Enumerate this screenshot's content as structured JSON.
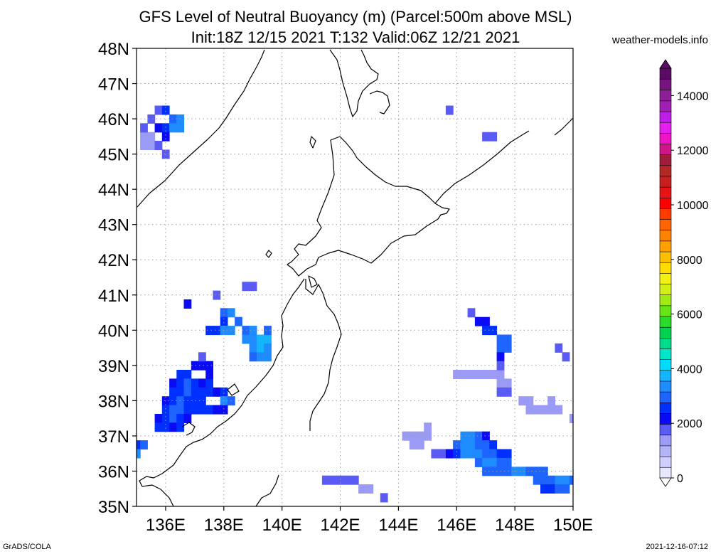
{
  "chart_data": {
    "type": "heatmap",
    "title": "GFS Level of Neutral Buoyancy (m) (Parcel:500m above MSL)",
    "subtitle": "Init:18Z 12/15 2021 T:132 Valid:06Z 12/21 2021",
    "source": "weather-models.info",
    "footer_left": "GrADS/COLA",
    "footer_right": "2021-12-16-07:12",
    "xlim": [
      135,
      150
    ],
    "ylim": [
      35,
      48
    ],
    "grid": true,
    "x_ticks": [
      {
        "value": 136,
        "label": "136E"
      },
      {
        "value": 138,
        "label": "138E"
      },
      {
        "value": 140,
        "label": "140E"
      },
      {
        "value": 142,
        "label": "142E"
      },
      {
        "value": 144,
        "label": "144E"
      },
      {
        "value": 146,
        "label": "146E"
      },
      {
        "value": 148,
        "label": "148E"
      },
      {
        "value": 150,
        "label": "150E"
      }
    ],
    "y_ticks": [
      {
        "value": 35,
        "label": "35N"
      },
      {
        "value": 36,
        "label": "36N"
      },
      {
        "value": 37,
        "label": "37N"
      },
      {
        "value": 38,
        "label": "38N"
      },
      {
        "value": 39,
        "label": "39N"
      },
      {
        "value": 40,
        "label": "40N"
      },
      {
        "value": 41,
        "label": "41N"
      },
      {
        "value": 42,
        "label": "42N"
      },
      {
        "value": 43,
        "label": "43N"
      },
      {
        "value": 44,
        "label": "44N"
      },
      {
        "value": 45,
        "label": "45N"
      },
      {
        "value": 46,
        "label": "46N"
      },
      {
        "value": 47,
        "label": "47N"
      },
      {
        "value": 48,
        "label": "48N"
      }
    ],
    "colorbar": {
      "min": 0,
      "max": 15000,
      "labels": [
        {
          "value": 0,
          "label": "0"
        },
        {
          "value": 2000,
          "label": "2000"
        },
        {
          "value": 4000,
          "label": "4000"
        },
        {
          "value": 6000,
          "label": "6000"
        },
        {
          "value": 8000,
          "label": "8000"
        },
        {
          "value": 10000,
          "label": "10000"
        },
        {
          "value": 12000,
          "label": "12000"
        },
        {
          "value": 14000,
          "label": "14000"
        }
      ],
      "colors": [
        "#e6e6ff",
        "#cdcdff",
        "#b4b4fa",
        "#9b9bf5",
        "#5a5af5",
        "#0a0af5",
        "#0030ff",
        "#1e64ff",
        "#1e8cff",
        "#14b4ff",
        "#00dcff",
        "#00e6c8",
        "#00dc8c",
        "#00d250",
        "#28dc28",
        "#64e614",
        "#a0eb14",
        "#d2f014",
        "#f5f014",
        "#ffdc00",
        "#ffbe00",
        "#ffa000",
        "#ff8200",
        "#ff6400",
        "#ff3c00",
        "#ff0000",
        "#e61414",
        "#c81e1e",
        "#b42828",
        "#a01e3c",
        "#d2148c",
        "#f014c8",
        "#e61ef0",
        "#be1ee6",
        "#a01eb4",
        "#8c1e96",
        "#78147d",
        "#5a0a64"
      ]
    },
    "cells": [
      {
        "lon": 135.5,
        "lat": 45.5,
        "value": 1500
      },
      {
        "lon": 135.5,
        "lat": 45.25,
        "value": 1300
      },
      {
        "lon": 135.75,
        "lat": 45.25,
        "value": 1800
      },
      {
        "lon": 135.75,
        "lat": 45.75,
        "value": 2200
      },
      {
        "lon": 135.5,
        "lat": 46.0,
        "value": 1700
      },
      {
        "lon": 135.75,
        "lat": 46.25,
        "value": 1900
      },
      {
        "lon": 136.0,
        "lat": 46.25,
        "value": 2600
      },
      {
        "lon": 136.25,
        "lat": 46.0,
        "value": 3000
      },
      {
        "lon": 136.0,
        "lat": 45.75,
        "value": 2400
      },
      {
        "lon": 136.25,
        "lat": 45.75,
        "value": 3200
      },
      {
        "lon": 136.5,
        "lat": 46.0,
        "value": 3300
      },
      {
        "lon": 136.5,
        "lat": 45.75,
        "value": 3300
      },
      {
        "lon": 135.25,
        "lat": 45.25,
        "value": 1200
      },
      {
        "lon": 135.25,
        "lat": 45.5,
        "value": 1400
      },
      {
        "lon": 135.25,
        "lat": 45.75,
        "value": 1600
      },
      {
        "lon": 136.0,
        "lat": 45.5,
        "value": 2000
      },
      {
        "lon": 136.0,
        "lat": 45.0,
        "value": 1600
      },
      {
        "lon": 145.75,
        "lat": 46.25,
        "value": 1600
      },
      {
        "lon": 147.0,
        "lat": 45.5,
        "value": 1900
      },
      {
        "lon": 147.25,
        "lat": 45.5,
        "value": 1900
      },
      {
        "lon": 136.75,
        "lat": 40.75,
        "value": 2000
      },
      {
        "lon": 138.75,
        "lat": 41.25,
        "value": 1800
      },
      {
        "lon": 139.0,
        "lat": 41.25,
        "value": 1800
      },
      {
        "lon": 137.75,
        "lat": 41.0,
        "value": 1800
      },
      {
        "lon": 138.0,
        "lat": 40.5,
        "value": 2800
      },
      {
        "lon": 138.25,
        "lat": 40.5,
        "value": 3200
      },
      {
        "lon": 138.0,
        "lat": 40.25,
        "value": 2600
      },
      {
        "lon": 137.75,
        "lat": 40.0,
        "value": 2600
      },
      {
        "lon": 138.0,
        "lat": 40.0,
        "value": 3200
      },
      {
        "lon": 138.25,
        "lat": 40.0,
        "value": 3200
      },
      {
        "lon": 138.5,
        "lat": 40.25,
        "value": 3000
      },
      {
        "lon": 138.75,
        "lat": 40.0,
        "value": 3000
      },
      {
        "lon": 138.75,
        "lat": 39.75,
        "value": 3300
      },
      {
        "lon": 139.0,
        "lat": 40.0,
        "value": 3200
      },
      {
        "lon": 139.0,
        "lat": 39.75,
        "value": 3500
      },
      {
        "lon": 139.25,
        "lat": 39.75,
        "value": 3600
      },
      {
        "lon": 139.0,
        "lat": 39.5,
        "value": 3300
      },
      {
        "lon": 139.25,
        "lat": 39.5,
        "value": 3600
      },
      {
        "lon": 139.5,
        "lat": 39.75,
        "value": 3600
      },
      {
        "lon": 139.5,
        "lat": 39.5,
        "value": 3400
      },
      {
        "lon": 139.0,
        "lat": 39.25,
        "value": 3100
      },
      {
        "lon": 139.25,
        "lat": 39.25,
        "value": 3500
      },
      {
        "lon": 139.5,
        "lat": 39.25,
        "value": 3500
      },
      {
        "lon": 139.5,
        "lat": 40.0,
        "value": 3000
      },
      {
        "lon": 137.5,
        "lat": 40.0,
        "value": 2400
      },
      {
        "lon": 136.5,
        "lat": 38.75,
        "value": 2400
      },
      {
        "lon": 136.75,
        "lat": 38.75,
        "value": 2600
      },
      {
        "lon": 137.0,
        "lat": 39.0,
        "value": 2000
      },
      {
        "lon": 137.25,
        "lat": 39.0,
        "value": 2200
      },
      {
        "lon": 137.5,
        "lat": 39.0,
        "value": 2000
      },
      {
        "lon": 137.25,
        "lat": 39.25,
        "value": 1800
      },
      {
        "lon": 136.25,
        "lat": 38.5,
        "value": 2200
      },
      {
        "lon": 136.5,
        "lat": 38.5,
        "value": 2600
      },
      {
        "lon": 136.75,
        "lat": 38.5,
        "value": 2800
      },
      {
        "lon": 137.0,
        "lat": 38.5,
        "value": 2400
      },
      {
        "lon": 137.25,
        "lat": 38.5,
        "value": 2300
      },
      {
        "lon": 137.5,
        "lat": 38.5,
        "value": 2400
      },
      {
        "lon": 137.5,
        "lat": 38.75,
        "value": 2200
      },
      {
        "lon": 136.25,
        "lat": 38.25,
        "value": 2400
      },
      {
        "lon": 136.5,
        "lat": 38.25,
        "value": 2600
      },
      {
        "lon": 136.75,
        "lat": 38.25,
        "value": 2800
      },
      {
        "lon": 137.0,
        "lat": 38.25,
        "value": 2600
      },
      {
        "lon": 137.25,
        "lat": 38.25,
        "value": 2500
      },
      {
        "lon": 137.5,
        "lat": 38.25,
        "value": 2500
      },
      {
        "lon": 137.75,
        "lat": 38.25,
        "value": 2200
      },
      {
        "lon": 138.0,
        "lat": 38.25,
        "value": 2500
      },
      {
        "lon": 136.0,
        "lat": 38.0,
        "value": 2200
      },
      {
        "lon": 136.25,
        "lat": 38.0,
        "value": 2600
      },
      {
        "lon": 136.5,
        "lat": 38.0,
        "value": 2800
      },
      {
        "lon": 136.75,
        "lat": 38.0,
        "value": 2600
      },
      {
        "lon": 137.0,
        "lat": 38.0,
        "value": 2700
      },
      {
        "lon": 137.25,
        "lat": 38.0,
        "value": 2700
      },
      {
        "lon": 138.0,
        "lat": 38.0,
        "value": 3300
      },
      {
        "lon": 138.25,
        "lat": 38.0,
        "value": 3000
      },
      {
        "lon": 136.0,
        "lat": 37.75,
        "value": 2500
      },
      {
        "lon": 136.25,
        "lat": 37.75,
        "value": 2800
      },
      {
        "lon": 136.5,
        "lat": 37.75,
        "value": 2800
      },
      {
        "lon": 136.75,
        "lat": 37.75,
        "value": 2700
      },
      {
        "lon": 137.0,
        "lat": 37.75,
        "value": 2400
      },
      {
        "lon": 137.25,
        "lat": 37.75,
        "value": 2700
      },
      {
        "lon": 137.5,
        "lat": 37.75,
        "value": 2400
      },
      {
        "lon": 137.75,
        "lat": 37.75,
        "value": 2200
      },
      {
        "lon": 138.0,
        "lat": 37.75,
        "value": 2000
      },
      {
        "lon": 135.75,
        "lat": 37.5,
        "value": 2200
      },
      {
        "lon": 136.0,
        "lat": 37.5,
        "value": 2700
      },
      {
        "lon": 136.25,
        "lat": 37.5,
        "value": 2800
      },
      {
        "lon": 136.5,
        "lat": 37.5,
        "value": 2600
      },
      {
        "lon": 136.75,
        "lat": 37.5,
        "value": 2200
      },
      {
        "lon": 135.75,
        "lat": 37.25,
        "value": 2400
      },
      {
        "lon": 136.0,
        "lat": 37.25,
        "value": 2400
      },
      {
        "lon": 136.25,
        "lat": 37.25,
        "value": 2200
      },
      {
        "lon": 136.5,
        "lat": 37.25,
        "value": 2500
      },
      {
        "lon": 135.0,
        "lat": 36.75,
        "value": 2400
      },
      {
        "lon": 135.25,
        "lat": 36.75,
        "value": 2800
      },
      {
        "lon": 135.0,
        "lat": 36.5,
        "value": 3200
      },
      {
        "lon": 146.5,
        "lat": 40.5,
        "value": 1600
      },
      {
        "lon": 146.75,
        "lat": 40.25,
        "value": 2000
      },
      {
        "lon": 147.0,
        "lat": 40.25,
        "value": 2200
      },
      {
        "lon": 147.0,
        "lat": 40.0,
        "value": 2400
      },
      {
        "lon": 147.25,
        "lat": 40.0,
        "value": 2600
      },
      {
        "lon": 147.5,
        "lat": 39.75,
        "value": 3000
      },
      {
        "lon": 147.75,
        "lat": 39.75,
        "value": 3100
      },
      {
        "lon": 147.5,
        "lat": 39.5,
        "value": 2800
      },
      {
        "lon": 147.75,
        "lat": 39.5,
        "value": 2800
      },
      {
        "lon": 147.5,
        "lat": 39.25,
        "value": 2200
      },
      {
        "lon": 149.5,
        "lat": 39.5,
        "value": 1800
      },
      {
        "lon": 149.75,
        "lat": 39.25,
        "value": 1900
      },
      {
        "lon": 146.0,
        "lat": 38.75,
        "value": 1500
      },
      {
        "lon": 146.25,
        "lat": 38.75,
        "value": 1500
      },
      {
        "lon": 146.5,
        "lat": 38.75,
        "value": 1500
      },
      {
        "lon": 146.75,
        "lat": 38.75,
        "value": 1500
      },
      {
        "lon": 147.0,
        "lat": 38.75,
        "value": 1500
      },
      {
        "lon": 147.25,
        "lat": 38.75,
        "value": 1500
      },
      {
        "lon": 147.5,
        "lat": 38.75,
        "value": 1400
      },
      {
        "lon": 147.5,
        "lat": 39.0,
        "value": 1900
      },
      {
        "lon": 147.5,
        "lat": 38.5,
        "value": 1500
      },
      {
        "lon": 147.75,
        "lat": 38.5,
        "value": 1500
      },
      {
        "lon": 147.5,
        "lat": 38.25,
        "value": 1600
      },
      {
        "lon": 147.75,
        "lat": 38.25,
        "value": 1600
      },
      {
        "lon": 148.25,
        "lat": 38.0,
        "value": 1500
      },
      {
        "lon": 148.5,
        "lat": 38.0,
        "value": 1500
      },
      {
        "lon": 148.5,
        "lat": 37.75,
        "value": 1500
      },
      {
        "lon": 148.75,
        "lat": 37.75,
        "value": 1500
      },
      {
        "lon": 149.0,
        "lat": 37.75,
        "value": 1500
      },
      {
        "lon": 149.25,
        "lat": 37.75,
        "value": 1500
      },
      {
        "lon": 149.5,
        "lat": 37.75,
        "value": 1500
      },
      {
        "lon": 149.25,
        "lat": 38.0,
        "value": 1500
      },
      {
        "lon": 150.0,
        "lat": 37.5,
        "value": 1500
      },
      {
        "lon": 144.25,
        "lat": 37.0,
        "value": 1500
      },
      {
        "lon": 144.5,
        "lat": 37.0,
        "value": 1500
      },
      {
        "lon": 144.75,
        "lat": 37.0,
        "value": 1500
      },
      {
        "lon": 145.0,
        "lat": 37.25,
        "value": 1500
      },
      {
        "lon": 144.5,
        "lat": 36.75,
        "value": 1500
      },
      {
        "lon": 144.75,
        "lat": 36.75,
        "value": 1500
      },
      {
        "lon": 145.0,
        "lat": 37.0,
        "value": 1500
      },
      {
        "lon": 145.25,
        "lat": 36.5,
        "value": 1800
      },
      {
        "lon": 145.5,
        "lat": 36.5,
        "value": 1800
      },
      {
        "lon": 145.75,
        "lat": 36.5,
        "value": 2000
      },
      {
        "lon": 146.0,
        "lat": 36.75,
        "value": 3000
      },
      {
        "lon": 146.25,
        "lat": 36.75,
        "value": 3300
      },
      {
        "lon": 146.5,
        "lat": 36.75,
        "value": 3400
      },
      {
        "lon": 146.25,
        "lat": 37.0,
        "value": 3200
      },
      {
        "lon": 146.5,
        "lat": 37.0,
        "value": 3300
      },
      {
        "lon": 146.75,
        "lat": 37.0,
        "value": 3000
      },
      {
        "lon": 147.0,
        "lat": 37.0,
        "value": 2200
      },
      {
        "lon": 146.0,
        "lat": 36.5,
        "value": 2600
      },
      {
        "lon": 146.25,
        "lat": 36.5,
        "value": 3300
      },
      {
        "lon": 146.5,
        "lat": 36.5,
        "value": 3400
      },
      {
        "lon": 146.75,
        "lat": 36.5,
        "value": 3300
      },
      {
        "lon": 146.75,
        "lat": 36.75,
        "value": 3000
      },
      {
        "lon": 147.0,
        "lat": 36.75,
        "value": 2800
      },
      {
        "lon": 147.25,
        "lat": 36.75,
        "value": 2600
      },
      {
        "lon": 147.0,
        "lat": 36.5,
        "value": 3000
      },
      {
        "lon": 147.25,
        "lat": 36.5,
        "value": 2800
      },
      {
        "lon": 147.5,
        "lat": 36.5,
        "value": 2600
      },
      {
        "lon": 147.75,
        "lat": 36.5,
        "value": 2400
      },
      {
        "lon": 146.75,
        "lat": 36.25,
        "value": 3000
      },
      {
        "lon": 147.0,
        "lat": 36.25,
        "value": 3200
      },
      {
        "lon": 147.25,
        "lat": 36.25,
        "value": 3300
      },
      {
        "lon": 147.5,
        "lat": 36.25,
        "value": 3100
      },
      {
        "lon": 147.75,
        "lat": 36.25,
        "value": 2900
      },
      {
        "lon": 147.0,
        "lat": 36.0,
        "value": 2800
      },
      {
        "lon": 147.25,
        "lat": 36.0,
        "value": 2900
      },
      {
        "lon": 147.5,
        "lat": 36.0,
        "value": 3000
      },
      {
        "lon": 147.75,
        "lat": 36.0,
        "value": 3100
      },
      {
        "lon": 148.0,
        "lat": 36.0,
        "value": 3200
      },
      {
        "lon": 148.25,
        "lat": 36.0,
        "value": 3200
      },
      {
        "lon": 148.5,
        "lat": 36.0,
        "value": 3100
      },
      {
        "lon": 148.75,
        "lat": 36.0,
        "value": 3000
      },
      {
        "lon": 149.0,
        "lat": 36.0,
        "value": 2800
      },
      {
        "lon": 148.75,
        "lat": 35.75,
        "value": 3000
      },
      {
        "lon": 149.0,
        "lat": 35.75,
        "value": 3100
      },
      {
        "lon": 149.25,
        "lat": 35.75,
        "value": 3100
      },
      {
        "lon": 149.5,
        "lat": 35.75,
        "value": 3200
      },
      {
        "lon": 149.75,
        "lat": 35.75,
        "value": 3300
      },
      {
        "lon": 150.0,
        "lat": 35.75,
        "value": 3100
      },
      {
        "lon": 149.0,
        "lat": 35.5,
        "value": 2600
      },
      {
        "lon": 149.25,
        "lat": 35.5,
        "value": 2700
      },
      {
        "lon": 149.5,
        "lat": 35.5,
        "value": 2800
      },
      {
        "lon": 149.75,
        "lat": 35.5,
        "value": 2900
      },
      {
        "lon": 141.5,
        "lat": 35.75,
        "value": 1800
      },
      {
        "lon": 141.75,
        "lat": 35.75,
        "value": 1800
      },
      {
        "lon": 142.0,
        "lat": 35.75,
        "value": 1800
      },
      {
        "lon": 142.25,
        "lat": 35.75,
        "value": 1800
      },
      {
        "lon": 142.5,
        "lat": 35.75,
        "value": 1800
      },
      {
        "lon": 142.75,
        "lat": 35.5,
        "value": 1500
      },
      {
        "lon": 143.0,
        "lat": 35.5,
        "value": 1500
      },
      {
        "lon": 143.5,
        "lat": 35.25,
        "value": 1600
      }
    ]
  }
}
